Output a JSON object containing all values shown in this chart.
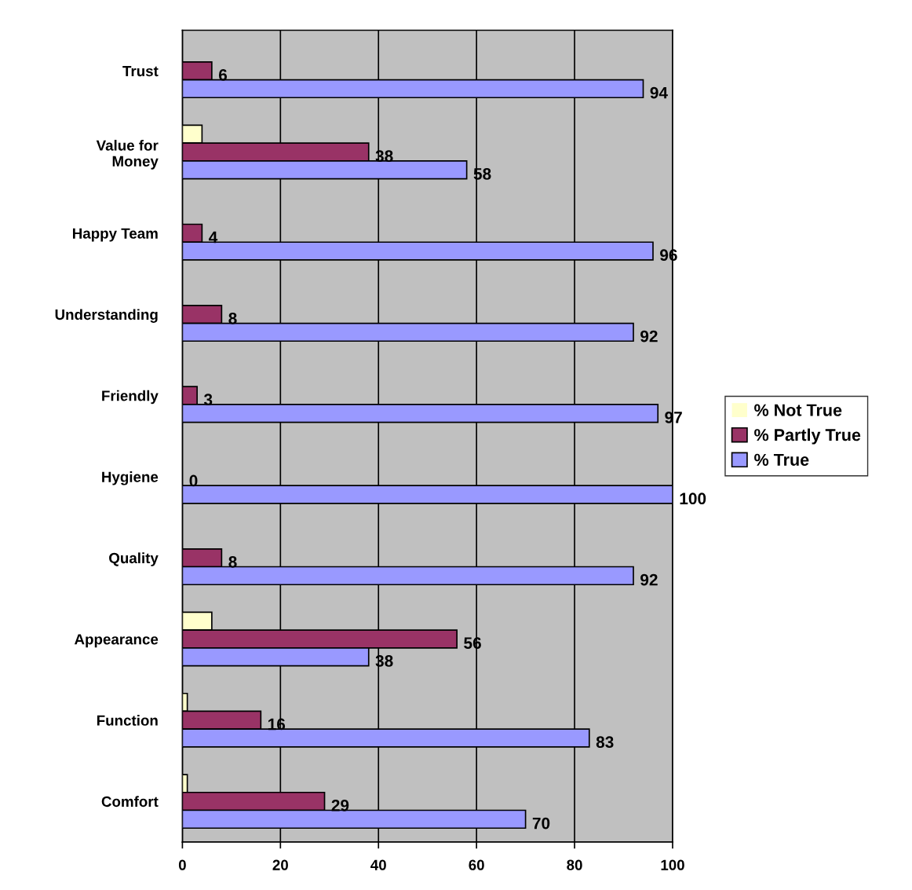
{
  "chart_data": {
    "type": "bar",
    "orientation": "horizontal",
    "categories": [
      "Trust",
      "Value for\nMoney",
      "Happy Team",
      "Understanding",
      "Friendly",
      "Hygiene",
      "Quality",
      "Appearance",
      "Function",
      "Comfort"
    ],
    "series": [
      {
        "name": "% Not True",
        "color": "#ffffcc",
        "values": [
          0,
          4,
          0,
          0,
          0,
          0,
          0,
          6,
          1,
          1
        ]
      },
      {
        "name": "% Partly True",
        "color": "#993366",
        "values": [
          6,
          38,
          4,
          8,
          3,
          0,
          8,
          56,
          16,
          29
        ],
        "value_labels": [
          "6",
          "38",
          "4",
          "8",
          "3",
          "0",
          "8",
          "56",
          "16",
          "29"
        ]
      },
      {
        "name": "% True",
        "color": "#9999ff",
        "values": [
          94,
          58,
          96,
          92,
          97,
          100,
          92,
          38,
          83,
          70
        ],
        "value_labels": [
          "94",
          "58",
          "96",
          "92",
          "97",
          "100",
          "92",
          "38",
          "83",
          "70"
        ]
      }
    ],
    "xlim": [
      0,
      100
    ],
    "xticks": [
      0,
      20,
      40,
      60,
      80,
      100
    ],
    "grid": "x",
    "legend": "right"
  }
}
